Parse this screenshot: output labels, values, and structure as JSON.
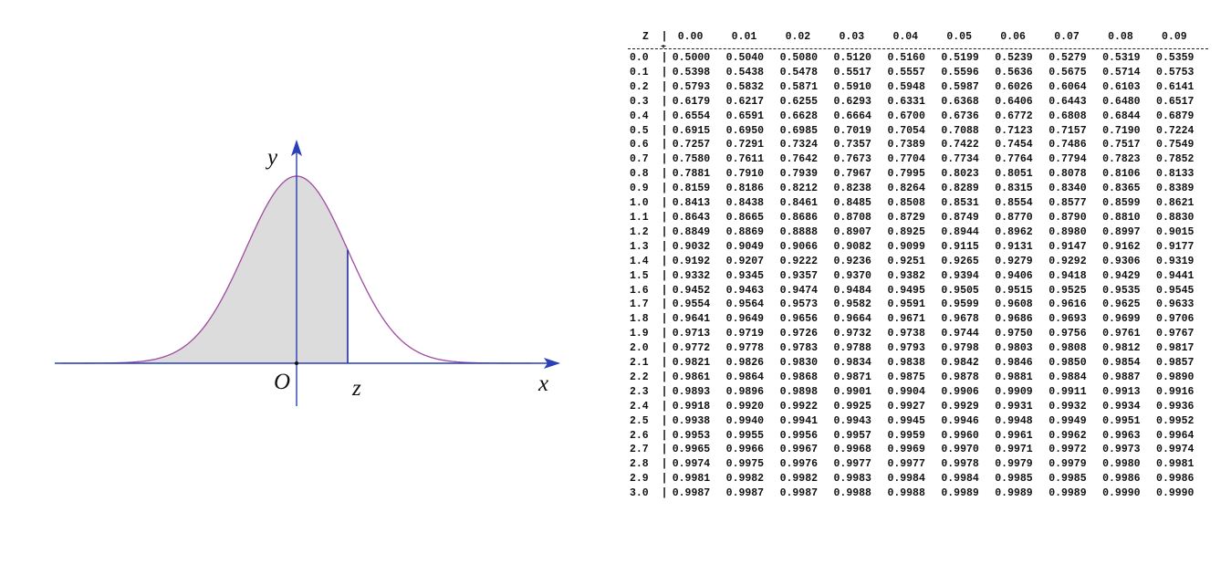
{
  "figure": {
    "axis_x_label": "x",
    "axis_y_label": "y",
    "origin_label": "O",
    "z_label": "z",
    "colors": {
      "axis": "#2a3fb8",
      "curve": "#a04aa0",
      "fill": "#dcdcdc",
      "z_line": "#1c2e9e"
    }
  },
  "chart_data": {
    "type": "area",
    "x_axis": "x",
    "y_axis": "y",
    "curve": "standard normal density",
    "shaded_region": "left of z",
    "z": 1.0,
    "xlim": [
      -4.6,
      4.6
    ]
  },
  "table": {
    "corner_label": "Z",
    "headers": [
      "0.00",
      "0.01",
      "0.02",
      "0.03",
      "0.04",
      "0.05",
      "0.06",
      "0.07",
      "0.08",
      "0.09"
    ],
    "rows": [
      {
        "z": "0.0",
        "values": [
          "0.5000",
          "0.5040",
          "0.5080",
          "0.5120",
          "0.5160",
          "0.5199",
          "0.5239",
          "0.5279",
          "0.5319",
          "0.5359"
        ]
      },
      {
        "z": "0.1",
        "values": [
          "0.5398",
          "0.5438",
          "0.5478",
          "0.5517",
          "0.5557",
          "0.5596",
          "0.5636",
          "0.5675",
          "0.5714",
          "0.5753"
        ]
      },
      {
        "z": "0.2",
        "values": [
          "0.5793",
          "0.5832",
          "0.5871",
          "0.5910",
          "0.5948",
          "0.5987",
          "0.6026",
          "0.6064",
          "0.6103",
          "0.6141"
        ]
      },
      {
        "z": "0.3",
        "values": [
          "0.6179",
          "0.6217",
          "0.6255",
          "0.6293",
          "0.6331",
          "0.6368",
          "0.6406",
          "0.6443",
          "0.6480",
          "0.6517"
        ]
      },
      {
        "z": "0.4",
        "values": [
          "0.6554",
          "0.6591",
          "0.6628",
          "0.6664",
          "0.6700",
          "0.6736",
          "0.6772",
          "0.6808",
          "0.6844",
          "0.6879"
        ]
      },
      {
        "z": "0.5",
        "values": [
          "0.6915",
          "0.6950",
          "0.6985",
          "0.7019",
          "0.7054",
          "0.7088",
          "0.7123",
          "0.7157",
          "0.7190",
          "0.7224"
        ]
      },
      {
        "z": "0.6",
        "values": [
          "0.7257",
          "0.7291",
          "0.7324",
          "0.7357",
          "0.7389",
          "0.7422",
          "0.7454",
          "0.7486",
          "0.7517",
          "0.7549"
        ]
      },
      {
        "z": "0.7",
        "values": [
          "0.7580",
          "0.7611",
          "0.7642",
          "0.7673",
          "0.7704",
          "0.7734",
          "0.7764",
          "0.7794",
          "0.7823",
          "0.7852"
        ]
      },
      {
        "z": "0.8",
        "values": [
          "0.7881",
          "0.7910",
          "0.7939",
          "0.7967",
          "0.7995",
          "0.8023",
          "0.8051",
          "0.8078",
          "0.8106",
          "0.8133"
        ]
      },
      {
        "z": "0.9",
        "values": [
          "0.8159",
          "0.8186",
          "0.8212",
          "0.8238",
          "0.8264",
          "0.8289",
          "0.8315",
          "0.8340",
          "0.8365",
          "0.8389"
        ]
      },
      {
        "z": "1.0",
        "values": [
          "0.8413",
          "0.8438",
          "0.8461",
          "0.8485",
          "0.8508",
          "0.8531",
          "0.8554",
          "0.8577",
          "0.8599",
          "0.8621"
        ]
      },
      {
        "z": "1.1",
        "values": [
          "0.8643",
          "0.8665",
          "0.8686",
          "0.8708",
          "0.8729",
          "0.8749",
          "0.8770",
          "0.8790",
          "0.8810",
          "0.8830"
        ]
      },
      {
        "z": "1.2",
        "values": [
          "0.8849",
          "0.8869",
          "0.8888",
          "0.8907",
          "0.8925",
          "0.8944",
          "0.8962",
          "0.8980",
          "0.8997",
          "0.9015"
        ]
      },
      {
        "z": "1.3",
        "values": [
          "0.9032",
          "0.9049",
          "0.9066",
          "0.9082",
          "0.9099",
          "0.9115",
          "0.9131",
          "0.9147",
          "0.9162",
          "0.9177"
        ]
      },
      {
        "z": "1.4",
        "values": [
          "0.9192",
          "0.9207",
          "0.9222",
          "0.9236",
          "0.9251",
          "0.9265",
          "0.9279",
          "0.9292",
          "0.9306",
          "0.9319"
        ]
      },
      {
        "z": "1.5",
        "values": [
          "0.9332",
          "0.9345",
          "0.9357",
          "0.9370",
          "0.9382",
          "0.9394",
          "0.9406",
          "0.9418",
          "0.9429",
          "0.9441"
        ]
      },
      {
        "z": "1.6",
        "values": [
          "0.9452",
          "0.9463",
          "0.9474",
          "0.9484",
          "0.9495",
          "0.9505",
          "0.9515",
          "0.9525",
          "0.9535",
          "0.9545"
        ]
      },
      {
        "z": "1.7",
        "values": [
          "0.9554",
          "0.9564",
          "0.9573",
          "0.9582",
          "0.9591",
          "0.9599",
          "0.9608",
          "0.9616",
          "0.9625",
          "0.9633"
        ]
      },
      {
        "z": "1.8",
        "values": [
          "0.9641",
          "0.9649",
          "0.9656",
          "0.9664",
          "0.9671",
          "0.9678",
          "0.9686",
          "0.9693",
          "0.9699",
          "0.9706"
        ]
      },
      {
        "z": "1.9",
        "values": [
          "0.9713",
          "0.9719",
          "0.9726",
          "0.9732",
          "0.9738",
          "0.9744",
          "0.9750",
          "0.9756",
          "0.9761",
          "0.9767"
        ]
      },
      {
        "z": "2.0",
        "values": [
          "0.9772",
          "0.9778",
          "0.9783",
          "0.9788",
          "0.9793",
          "0.9798",
          "0.9803",
          "0.9808",
          "0.9812",
          "0.9817"
        ]
      },
      {
        "z": "2.1",
        "values": [
          "0.9821",
          "0.9826",
          "0.9830",
          "0.9834",
          "0.9838",
          "0.9842",
          "0.9846",
          "0.9850",
          "0.9854",
          "0.9857"
        ]
      },
      {
        "z": "2.2",
        "values": [
          "0.9861",
          "0.9864",
          "0.9868",
          "0.9871",
          "0.9875",
          "0.9878",
          "0.9881",
          "0.9884",
          "0.9887",
          "0.9890"
        ]
      },
      {
        "z": "2.3",
        "values": [
          "0.9893",
          "0.9896",
          "0.9898",
          "0.9901",
          "0.9904",
          "0.9906",
          "0.9909",
          "0.9911",
          "0.9913",
          "0.9916"
        ]
      },
      {
        "z": "2.4",
        "values": [
          "0.9918",
          "0.9920",
          "0.9922",
          "0.9925",
          "0.9927",
          "0.9929",
          "0.9931",
          "0.9932",
          "0.9934",
          "0.9936"
        ]
      },
      {
        "z": "2.5",
        "values": [
          "0.9938",
          "0.9940",
          "0.9941",
          "0.9943",
          "0.9945",
          "0.9946",
          "0.9948",
          "0.9949",
          "0.9951",
          "0.9952"
        ]
      },
      {
        "z": "2.6",
        "values": [
          "0.9953",
          "0.9955",
          "0.9956",
          "0.9957",
          "0.9959",
          "0.9960",
          "0.9961",
          "0.9962",
          "0.9963",
          "0.9964"
        ]
      },
      {
        "z": "2.7",
        "values": [
          "0.9965",
          "0.9966",
          "0.9967",
          "0.9968",
          "0.9969",
          "0.9970",
          "0.9971",
          "0.9972",
          "0.9973",
          "0.9974"
        ]
      },
      {
        "z": "2.8",
        "values": [
          "0.9974",
          "0.9975",
          "0.9976",
          "0.9977",
          "0.9977",
          "0.9978",
          "0.9979",
          "0.9979",
          "0.9980",
          "0.9981"
        ]
      },
      {
        "z": "2.9",
        "values": [
          "0.9981",
          "0.9982",
          "0.9982",
          "0.9983",
          "0.9984",
          "0.9984",
          "0.9985",
          "0.9985",
          "0.9986",
          "0.9986"
        ]
      },
      {
        "z": "3.0",
        "values": [
          "0.9987",
          "0.9987",
          "0.9987",
          "0.9988",
          "0.9988",
          "0.9989",
          "0.9989",
          "0.9989",
          "0.9990",
          "0.9990"
        ]
      }
    ]
  }
}
